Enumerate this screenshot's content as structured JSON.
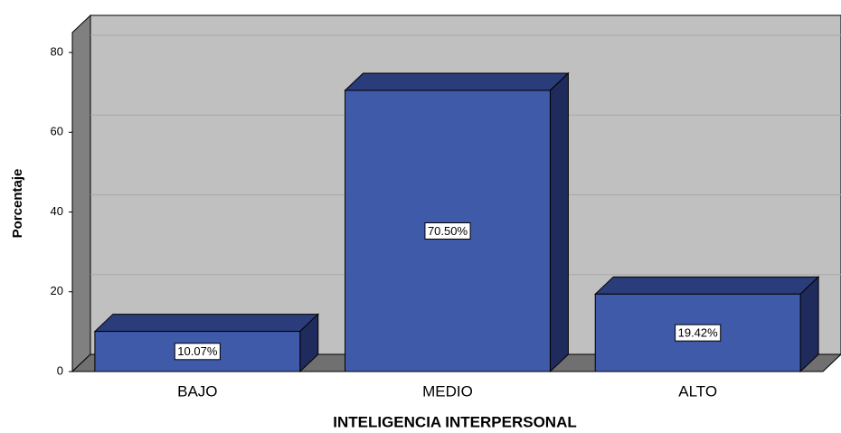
{
  "chart_data": {
    "type": "bar3d",
    "x_label": "INTELIGENCIA INTERPERSONAL",
    "y_label": "Porcentaje",
    "categories": [
      "BAJO",
      "MEDIO",
      "ALTO"
    ],
    "values": [
      10.07,
      70.5,
      19.42
    ],
    "value_labels": [
      "10.07%",
      "70.50%",
      "19.42%"
    ],
    "color": "#3f5aa8",
    "ylim": [
      0,
      85
    ],
    "yticks": [
      0,
      20,
      40,
      60,
      80
    ],
    "grid": true
  }
}
